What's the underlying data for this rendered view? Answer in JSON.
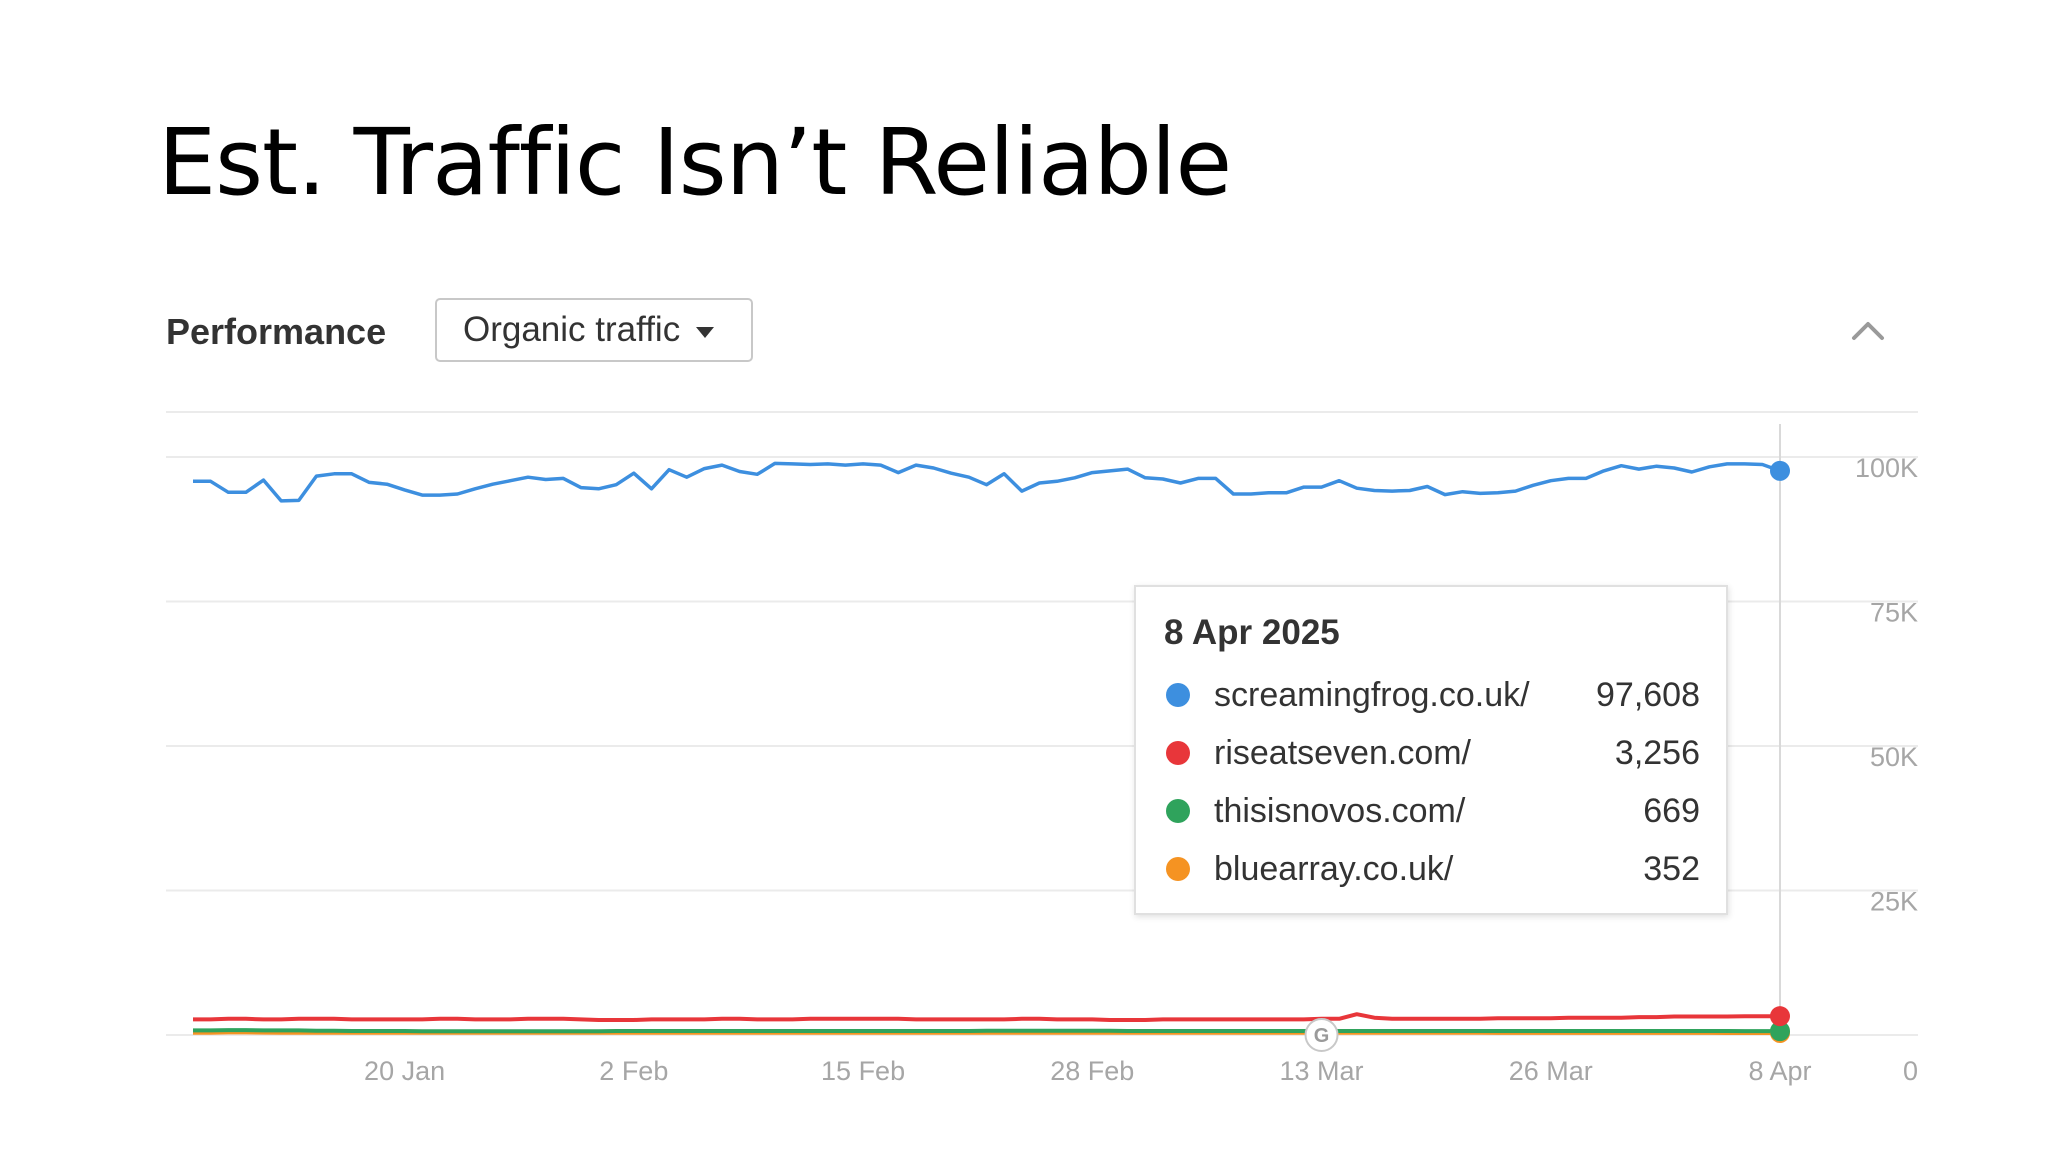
{
  "slide": {
    "title": "Est. Traffic Isn’t Reliable"
  },
  "panel": {
    "title": "Performance",
    "metric_selected": "Organic traffic",
    "collapse_icon": "chevron-up-icon"
  },
  "colors": {
    "grid": "#ebebeb",
    "axis_text": "#a6a6a6",
    "crosshair": "#d9d9d9"
  },
  "chart_data": {
    "type": "line",
    "x_tick_labels": [
      "20 Jan",
      "2 Feb",
      "15 Feb",
      "28 Feb",
      "13 Mar",
      "26 Mar",
      "8 Apr"
    ],
    "y_tick_labels": [
      "0",
      "25K",
      "50K",
      "75K",
      "100K"
    ],
    "y_ticks": [
      0,
      25000,
      50000,
      75000,
      100000
    ],
    "ylim": [
      0,
      100000
    ],
    "x_range": [
      "2025-01-08",
      "2025-04-08"
    ],
    "grid": true,
    "legend": "none",
    "annotation_marker": "google-update-icon",
    "annotation_date": "2025-03-13",
    "series": [
      {
        "name": "screamingfrog.co.uk/",
        "color": "#3d8fdf",
        "values": [
          95800,
          95800,
          93900,
          93900,
          96000,
          92400,
          92500,
          96700,
          97100,
          97100,
          95600,
          95300,
          94300,
          93400,
          93400,
          93600,
          94500,
          95300,
          95900,
          96500,
          96100,
          96300,
          94700,
          94500,
          95200,
          97200,
          94500,
          97800,
          96500,
          98000,
          98600,
          97500,
          97000,
          98900,
          98800,
          98700,
          98800,
          98600,
          98800,
          98600,
          97300,
          98600,
          98100,
          97200,
          96500,
          95200,
          97100,
          94100,
          95500,
          95800,
          96400,
          97300,
          97600,
          97900,
          96400,
          96200,
          95500,
          96300,
          96300,
          93600,
          93600,
          93800,
          93800,
          94800,
          94800,
          95900,
          94600,
          94200,
          94100,
          94200,
          94900,
          93500,
          94000,
          93700,
          93800,
          94100,
          95100,
          95900,
          96300,
          96300,
          97600,
          98500,
          97900,
          98400,
          98100,
          97400,
          98300,
          98800,
          98800,
          98700,
          97608
        ]
      },
      {
        "name": "riseatseven.com/",
        "color": "#e8363a",
        "values": [
          2700,
          2700,
          2800,
          2800,
          2700,
          2700,
          2800,
          2800,
          2800,
          2700,
          2700,
          2700,
          2700,
          2700,
          2800,
          2800,
          2700,
          2700,
          2700,
          2800,
          2800,
          2800,
          2700,
          2600,
          2600,
          2600,
          2700,
          2700,
          2700,
          2700,
          2800,
          2800,
          2700,
          2700,
          2700,
          2800,
          2800,
          2800,
          2800,
          2800,
          2800,
          2700,
          2700,
          2700,
          2700,
          2700,
          2700,
          2800,
          2800,
          2700,
          2700,
          2700,
          2600,
          2600,
          2600,
          2700,
          2700,
          2700,
          2700,
          2700,
          2700,
          2700,
          2700,
          2700,
          2800,
          2800,
          3600,
          3000,
          2800,
          2800,
          2800,
          2800,
          2800,
          2800,
          2900,
          2900,
          2900,
          2900,
          3000,
          3000,
          3000,
          3000,
          3100,
          3100,
          3200,
          3200,
          3200,
          3200,
          3256,
          3256,
          3256
        ]
      },
      {
        "name": "thisisnovos.com/",
        "color": "#2fa35c",
        "values": [
          800,
          800,
          850,
          850,
          800,
          800,
          800,
          750,
          750,
          700,
          700,
          700,
          700,
          650,
          650,
          650,
          650,
          650,
          650,
          650,
          650,
          650,
          650,
          650,
          700,
          700,
          700,
          700,
          700,
          700,
          700,
          700,
          700,
          700,
          700,
          700,
          700,
          700,
          700,
          700,
          700,
          700,
          700,
          700,
          700,
          750,
          750,
          750,
          750,
          750,
          750,
          750,
          750,
          700,
          700,
          700,
          700,
          700,
          700,
          700,
          700,
          700,
          700,
          700,
          700,
          700,
          700,
          700,
          700,
          700,
          700,
          700,
          700,
          700,
          700,
          700,
          700,
          700,
          700,
          700,
          700,
          700,
          700,
          700,
          700,
          700,
          700,
          700,
          669,
          669,
          669
        ]
      },
      {
        "name": "bluearray.co.uk/",
        "color": "#f59322",
        "values": [
          400,
          400,
          450,
          450,
          420,
          400,
          400,
          400,
          400,
          400,
          380,
          380,
          380,
          380,
          380,
          380,
          380,
          380,
          380,
          380,
          380,
          380,
          380,
          380,
          380,
          380,
          380,
          380,
          380,
          380,
          380,
          380,
          380,
          380,
          380,
          380,
          380,
          380,
          380,
          380,
          380,
          380,
          380,
          380,
          380,
          380,
          380,
          380,
          380,
          380,
          380,
          380,
          380,
          380,
          380,
          380,
          380,
          380,
          380,
          380,
          380,
          380,
          380,
          380,
          380,
          380,
          380,
          380,
          380,
          380,
          380,
          380,
          380,
          380,
          370,
          370,
          370,
          370,
          370,
          370,
          360,
          360,
          360,
          360,
          360,
          360,
          360,
          352,
          352,
          352,
          352
        ]
      }
    ]
  },
  "tooltip": {
    "date": "8 Apr 2025",
    "rows": [
      {
        "site": "screamingfrog.co.uk/",
        "value": "97,608",
        "color": "#3d8fdf"
      },
      {
        "site": "riseatseven.com/",
        "value": "3,256",
        "color": "#e8363a"
      },
      {
        "site": "thisisnovos.com/",
        "value": "669",
        "color": "#2fa35c"
      },
      {
        "site": "bluearray.co.uk/",
        "value": "352",
        "color": "#f59322"
      }
    ]
  }
}
